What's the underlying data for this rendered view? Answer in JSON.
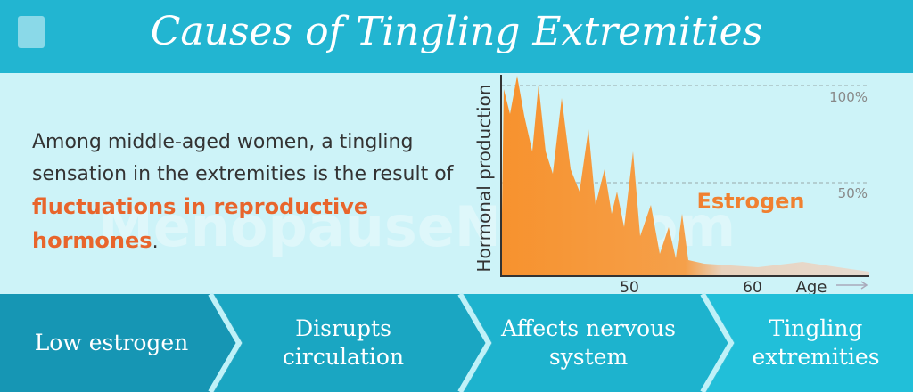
{
  "header": {
    "title": "Causes of Tingling Extremities"
  },
  "intro": {
    "text_before": "Among middle-aged women, a tingling sensation in the extremities is the result of ",
    "highlight": "fluctuations in reproductive hormones",
    "text_after": "."
  },
  "graph": {
    "y_label": "Hormonal production",
    "level_high": "100%",
    "level_mid": "50%",
    "curve_label": "Estrogen",
    "x_label_1": "50",
    "x_label_2": "60",
    "x_title": "Age"
  },
  "watermark": "MenopauseNow.com",
  "steps": [
    "Low estrogen",
    "Disrupts circulation",
    "Affects nervous system",
    "Tingling extremities"
  ]
}
